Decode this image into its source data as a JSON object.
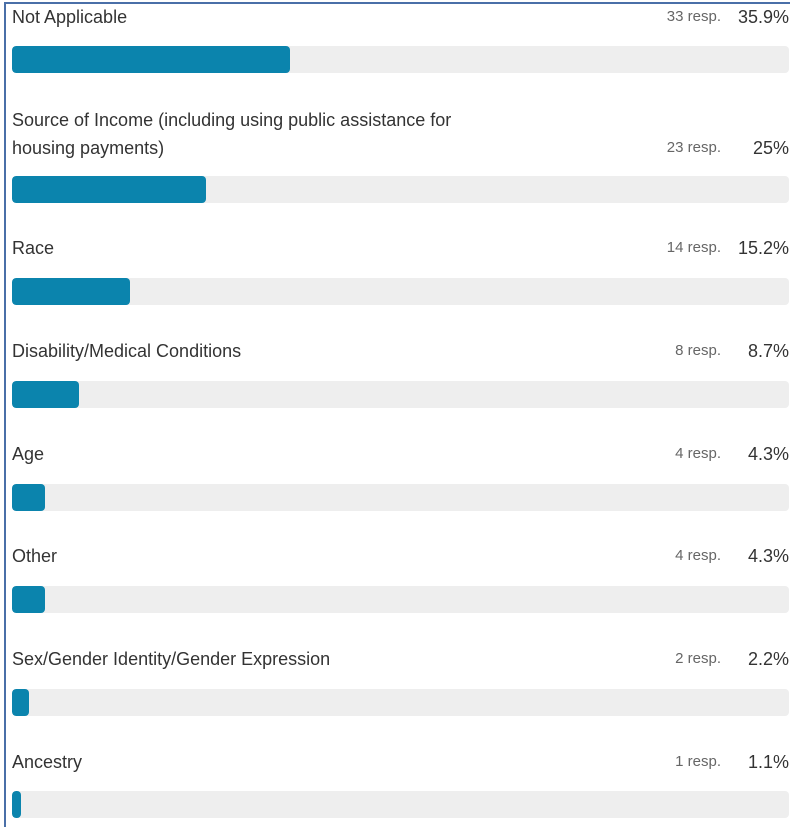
{
  "colors": {
    "bar": "#0b84ad",
    "track": "#eeeeee",
    "border": "#4a6fa8"
  },
  "chart_data": {
    "type": "bar",
    "orientation": "horizontal",
    "unit": "resp.",
    "items": [
      {
        "label": "Not Applicable",
        "responses": 33,
        "resp_text": "33 resp.",
        "percent": 35.9,
        "pct_text": "35.9%"
      },
      {
        "label": "Source of Income (including using public assistance for\nhousing payments)",
        "responses": 23,
        "resp_text": "23 resp.",
        "percent": 25,
        "pct_text": "25%"
      },
      {
        "label": "Race",
        "responses": 14,
        "resp_text": "14 resp.",
        "percent": 15.2,
        "pct_text": "15.2%"
      },
      {
        "label": "Disability/Medical Conditions",
        "responses": 8,
        "resp_text": "8 resp.",
        "percent": 8.7,
        "pct_text": "8.7%"
      },
      {
        "label": "Age",
        "responses": 4,
        "resp_text": "4 resp.",
        "percent": 4.3,
        "pct_text": "4.3%"
      },
      {
        "label": "Other",
        "responses": 4,
        "resp_text": "4 resp.",
        "percent": 4.3,
        "pct_text": "4.3%"
      },
      {
        "label": "Sex/Gender Identity/Gender Expression",
        "responses": 2,
        "resp_text": "2 resp.",
        "percent": 2.2,
        "pct_text": "2.2%"
      },
      {
        "label": "Ancestry",
        "responses": 1,
        "resp_text": "1 resp.",
        "percent": 1.1,
        "pct_text": "1.1%"
      }
    ]
  }
}
